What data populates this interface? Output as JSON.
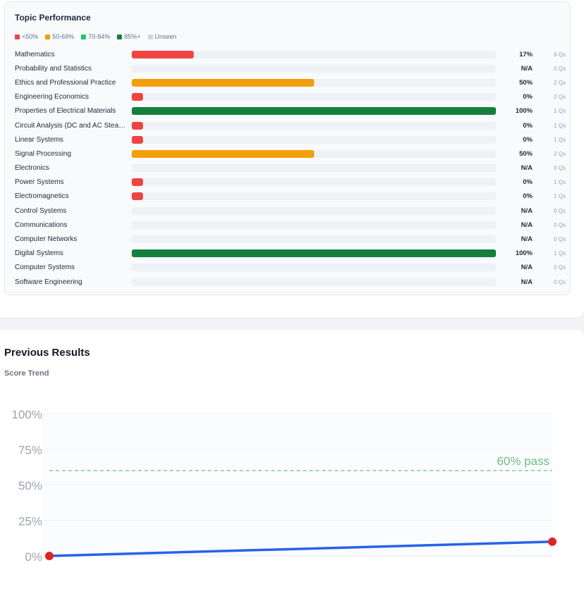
{
  "topic_performance": {
    "title": "Topic Performance",
    "legend": [
      {
        "label": "<50%",
        "color": "#ef4444"
      },
      {
        "label": "50-69%",
        "color": "#f59e0b"
      },
      {
        "label": "70-84%",
        "color": "#22c55e"
      },
      {
        "label": "85%+",
        "color": "#15803d"
      },
      {
        "label": "Unseen",
        "color": "#d1d5db"
      }
    ],
    "topics": [
      {
        "name": "Mathematics",
        "percent_label": "17%",
        "fill_fraction": 0.17,
        "color": "#ef4444",
        "questions": "6 Qs"
      },
      {
        "name": "Probability and Statistics",
        "percent_label": "N/A",
        "fill_fraction": 0,
        "color": "#ef4444",
        "questions": "0 Qs"
      },
      {
        "name": "Ethics and Professional Practice",
        "percent_label": "50%",
        "fill_fraction": 0.5,
        "color": "#f59e0b",
        "questions": "2 Qs"
      },
      {
        "name": "Engineering Economics",
        "percent_label": "0%",
        "fill_fraction": 0.03,
        "color": "#ef4444",
        "questions": "2 Qs"
      },
      {
        "name": "Properties of Electrical Materials",
        "percent_label": "100%",
        "fill_fraction": 1.0,
        "color": "#15803d",
        "questions": "1 Qs"
      },
      {
        "name": "Circuit Analysis (DC and AC Stea…",
        "percent_label": "0%",
        "fill_fraction": 0.03,
        "color": "#ef4444",
        "questions": "1 Qs"
      },
      {
        "name": "Linear Systems",
        "percent_label": "0%",
        "fill_fraction": 0.03,
        "color": "#ef4444",
        "questions": "1 Qs"
      },
      {
        "name": "Signal Processing",
        "percent_label": "50%",
        "fill_fraction": 0.5,
        "color": "#f59e0b",
        "questions": "2 Qs"
      },
      {
        "name": "Electronics",
        "percent_label": "N/A",
        "fill_fraction": 0,
        "color": "#ef4444",
        "questions": "0 Qs"
      },
      {
        "name": "Power Systems",
        "percent_label": "0%",
        "fill_fraction": 0.03,
        "color": "#ef4444",
        "questions": "1 Qs"
      },
      {
        "name": "Electromagnetics",
        "percent_label": "0%",
        "fill_fraction": 0.03,
        "color": "#ef4444",
        "questions": "1 Qs"
      },
      {
        "name": "Control Systems",
        "percent_label": "N/A",
        "fill_fraction": 0,
        "color": "#ef4444",
        "questions": "0 Qs"
      },
      {
        "name": "Communications",
        "percent_label": "N/A",
        "fill_fraction": 0,
        "color": "#ef4444",
        "questions": "0 Qs"
      },
      {
        "name": "Computer Networks",
        "percent_label": "N/A",
        "fill_fraction": 0,
        "color": "#ef4444",
        "questions": "0 Qs"
      },
      {
        "name": "Digital Systems",
        "percent_label": "100%",
        "fill_fraction": 1.0,
        "color": "#15803d",
        "questions": "1 Qs"
      },
      {
        "name": "Computer Systems",
        "percent_label": "N/A",
        "fill_fraction": 0,
        "color": "#ef4444",
        "questions": "0 Qs"
      },
      {
        "name": "Software Engineering",
        "percent_label": "N/A",
        "fill_fraction": 0,
        "color": "#ef4444",
        "questions": "0 Qs"
      }
    ]
  },
  "previous_results": {
    "title": "Previous Results",
    "trend_label": "Score Trend"
  },
  "chart_data": {
    "type": "line",
    "x": [
      1,
      2
    ],
    "series": [
      {
        "values": [
          0,
          10
        ],
        "color": "#2563eb",
        "point_color": "#dc2626"
      }
    ],
    "ylim": [
      0,
      100
    ],
    "y_ticks": [
      "0%",
      "25%",
      "50%",
      "75%",
      "100%"
    ],
    "y_tick_values": [
      0,
      25,
      50,
      75,
      100
    ],
    "pass_line": {
      "value": 60,
      "label": "60% pass",
      "color": "#86c99a"
    },
    "grid": true
  }
}
